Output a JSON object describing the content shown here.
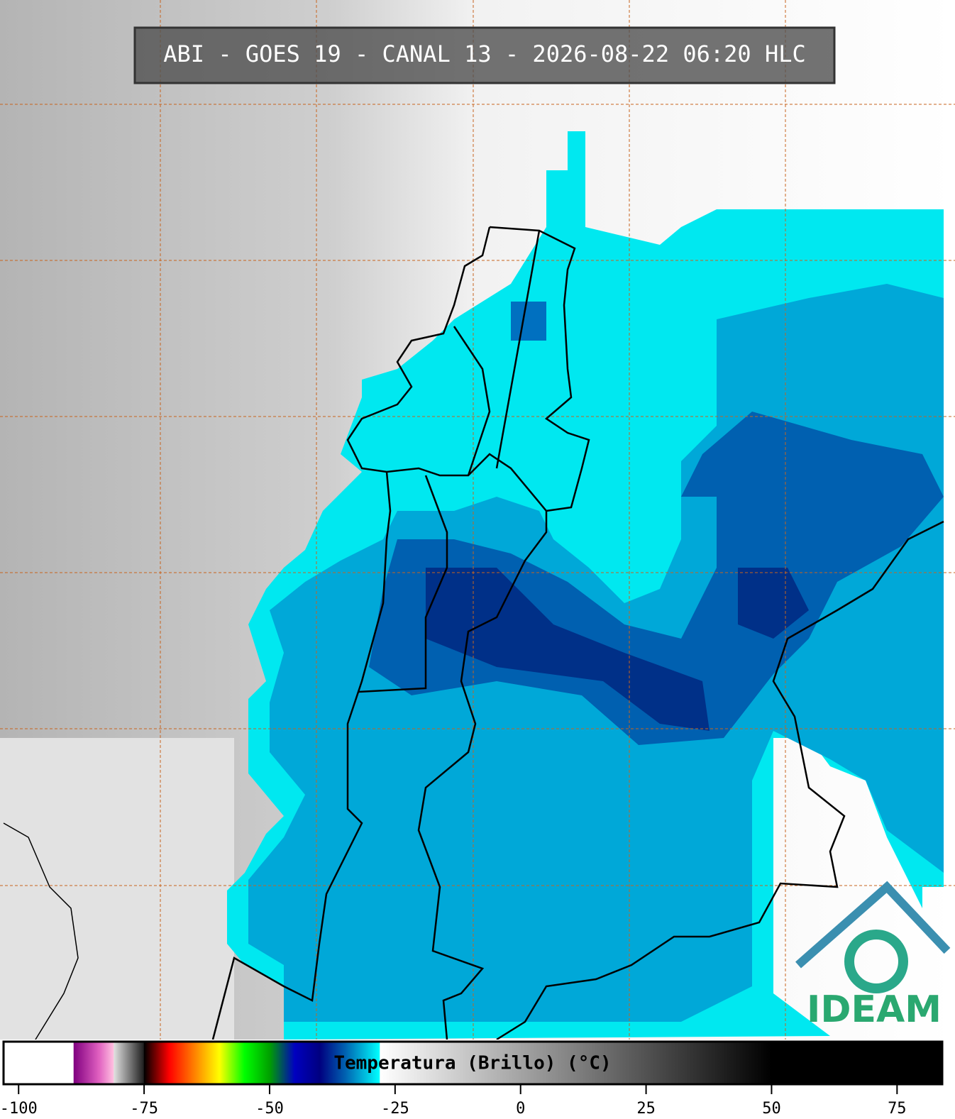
{
  "title": "ABI - GOES 19 - CANAL 13 - 2026-08-22 06:20 HLC",
  "colorbar": {
    "label": "Temperatura (Brillo) (°C)",
    "range": [
      -103,
      84
    ],
    "ticks": [
      -100,
      -75,
      -50,
      -25,
      0,
      25,
      50,
      75
    ],
    "stops": [
      {
        "value": -103,
        "color": "#ffffff"
      },
      {
        "value": -89.1,
        "color": "#ffffff"
      },
      {
        "value": -89,
        "color": "#800080"
      },
      {
        "value": -84,
        "color": "#e060c0"
      },
      {
        "value": -81.1,
        "color": "#ffc0e0"
      },
      {
        "value": -81,
        "color": "#e0e0e0"
      },
      {
        "value": -75.1,
        "color": "#202020"
      },
      {
        "value": -75,
        "color": "#000000"
      },
      {
        "value": -70,
        "color": "#ff0000"
      },
      {
        "value": -65,
        "color": "#ff8000"
      },
      {
        "value": -60,
        "color": "#ffff00"
      },
      {
        "value": -55,
        "color": "#00ff00"
      },
      {
        "value": -50,
        "color": "#00a000"
      },
      {
        "value": -45,
        "color": "#0000c0"
      },
      {
        "value": -40,
        "color": "#000080"
      },
      {
        "value": -35,
        "color": "#0060b0"
      },
      {
        "value": -28.1,
        "color": "#00ffff"
      },
      {
        "value": -28,
        "color": "#ffffff"
      },
      {
        "value": 50,
        "color": "#000000"
      },
      {
        "value": 84,
        "color": "#000000"
      }
    ]
  },
  "logo": "IDEAM"
}
